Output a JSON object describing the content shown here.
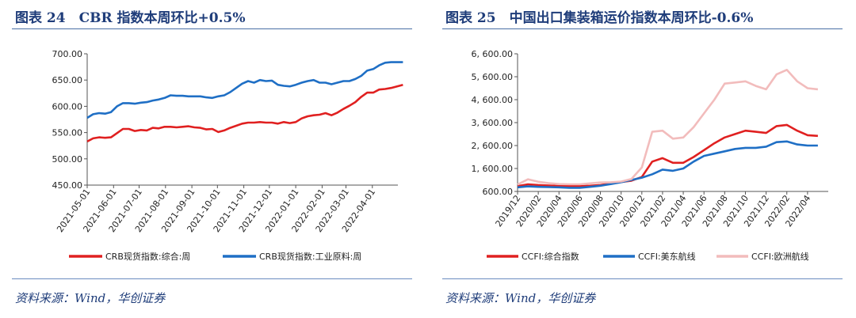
{
  "left": {
    "title": "图表 24　CBR 指数本周环比+0.5%",
    "source": "资料来源：Wind，华创证券",
    "chart_data": {
      "type": "line",
      "title": "",
      "ylim": [
        450,
        700
      ],
      "yticks": [
        "700.00",
        "650.00",
        "600.00",
        "550.00",
        "500.00",
        "450.00"
      ],
      "ytick_values": [
        700,
        650,
        600,
        550,
        500,
        450
      ],
      "x": [
        "2021-05-01",
        "2021-06-01",
        "2021-07-01",
        "2021-08-01",
        "2021-09-01",
        "2021-10-01",
        "2021-11-01",
        "2021-12-01",
        "2022-01-01",
        "2022-02-01",
        "2022-03-01",
        "2022-04-01"
      ],
      "xticks": [
        "2021-05-01",
        "2021-06-01",
        "2021-07-01",
        "2021-08-01",
        "2021-09-01",
        "2021-10-01",
        "2021-11-01",
        "2021-12-01",
        "2022-01-01",
        "2022-02-01",
        "2022-03-01",
        "2022-04-01"
      ],
      "x_end": "2022-05-01",
      "legend_position": "bottom",
      "series": [
        {
          "name": "CRB现货指数:综合:周",
          "color": "#e02020",
          "points": [
            [
              "2021-05-01",
              533
            ],
            [
              "2021-05-08",
              539
            ],
            [
              "2021-05-15",
              541
            ],
            [
              "2021-05-22",
              540
            ],
            [
              "2021-05-29",
              541
            ],
            [
              "2021-06-05",
              549
            ],
            [
              "2021-06-12",
              557
            ],
            [
              "2021-06-19",
              557
            ],
            [
              "2021-06-26",
              553
            ],
            [
              "2021-07-03",
              555
            ],
            [
              "2021-07-10",
              554
            ],
            [
              "2021-07-17",
              559
            ],
            [
              "2021-07-24",
              558
            ],
            [
              "2021-07-31",
              561
            ],
            [
              "2021-08-07",
              561
            ],
            [
              "2021-08-14",
              560
            ],
            [
              "2021-08-21",
              561
            ],
            [
              "2021-08-28",
              562
            ],
            [
              "2021-09-04",
              560
            ],
            [
              "2021-09-11",
              559
            ],
            [
              "2021-09-18",
              556
            ],
            [
              "2021-09-25",
              557
            ],
            [
              "2021-10-02",
              551
            ],
            [
              "2021-10-09",
              554
            ],
            [
              "2021-10-16",
              559
            ],
            [
              "2021-10-23",
              563
            ],
            [
              "2021-10-30",
              567
            ],
            [
              "2021-11-06",
              569
            ],
            [
              "2021-11-13",
              569
            ],
            [
              "2021-11-20",
              570
            ],
            [
              "2021-11-27",
              569
            ],
            [
              "2021-12-04",
              569
            ],
            [
              "2021-12-11",
              567
            ],
            [
              "2021-12-18",
              570
            ],
            [
              "2021-12-25",
              568
            ],
            [
              "2022-01-01",
              570
            ],
            [
              "2022-01-08",
              577
            ],
            [
              "2022-01-15",
              581
            ],
            [
              "2022-01-22",
              583
            ],
            [
              "2022-01-29",
              584
            ],
            [
              "2022-02-05",
              587
            ],
            [
              "2022-02-12",
              583
            ],
            [
              "2022-02-19",
              588
            ],
            [
              "2022-02-26",
              595
            ],
            [
              "2022-03-05",
              601
            ],
            [
              "2022-03-12",
              608
            ],
            [
              "2022-03-19",
              618
            ],
            [
              "2022-03-26",
              626
            ],
            [
              "2022-04-02",
              626
            ],
            [
              "2022-04-09",
              632
            ],
            [
              "2022-04-16",
              633
            ],
            [
              "2022-04-23",
              635
            ],
            [
              "2022-04-30",
              638
            ],
            [
              "2022-05-07",
              641
            ]
          ]
        },
        {
          "name": "CRB现货指数:工业原料:周",
          "color": "#1f6fc5",
          "points": [
            [
              "2021-05-01",
              578
            ],
            [
              "2021-05-08",
              585
            ],
            [
              "2021-05-15",
              587
            ],
            [
              "2021-05-22",
              586
            ],
            [
              "2021-05-29",
              589
            ],
            [
              "2021-06-05",
              600
            ],
            [
              "2021-06-12",
              606
            ],
            [
              "2021-06-19",
              606
            ],
            [
              "2021-06-26",
              605
            ],
            [
              "2021-07-03",
              607
            ],
            [
              "2021-07-10",
              608
            ],
            [
              "2021-07-17",
              611
            ],
            [
              "2021-07-24",
              613
            ],
            [
              "2021-07-31",
              616
            ],
            [
              "2021-08-07",
              621
            ],
            [
              "2021-08-14",
              620
            ],
            [
              "2021-08-21",
              620
            ],
            [
              "2021-08-28",
              619
            ],
            [
              "2021-09-04",
              619
            ],
            [
              "2021-09-11",
              619
            ],
            [
              "2021-09-18",
              617
            ],
            [
              "2021-09-25",
              616
            ],
            [
              "2021-10-02",
              619
            ],
            [
              "2021-10-09",
              621
            ],
            [
              "2021-10-16",
              627
            ],
            [
              "2021-10-23",
              635
            ],
            [
              "2021-10-30",
              643
            ],
            [
              "2021-11-06",
              648
            ],
            [
              "2021-11-13",
              645
            ],
            [
              "2021-11-20",
              650
            ],
            [
              "2021-11-27",
              648
            ],
            [
              "2021-12-04",
              649
            ],
            [
              "2021-12-11",
              641
            ],
            [
              "2021-12-18",
              639
            ],
            [
              "2021-12-25",
              638
            ],
            [
              "2022-01-01",
              641
            ],
            [
              "2022-01-08",
              645
            ],
            [
              "2022-01-15",
              648
            ],
            [
              "2022-01-22",
              650
            ],
            [
              "2022-01-29",
              645
            ],
            [
              "2022-02-05",
              645
            ],
            [
              "2022-02-12",
              642
            ],
            [
              "2022-02-19",
              645
            ],
            [
              "2022-02-26",
              648
            ],
            [
              "2022-03-05",
              648
            ],
            [
              "2022-03-12",
              652
            ],
            [
              "2022-03-19",
              658
            ],
            [
              "2022-03-26",
              668
            ],
            [
              "2022-04-02",
              671
            ],
            [
              "2022-04-09",
              678
            ],
            [
              "2022-04-16",
              683
            ],
            [
              "2022-04-23",
              684
            ],
            [
              "2022-04-30",
              684
            ],
            [
              "2022-05-07",
              684
            ]
          ]
        }
      ]
    }
  },
  "right": {
    "title": "图表 25　中国出口集装箱运价指数本周环比-0.6%",
    "source": "资料来源：Wind，华创证券",
    "chart_data": {
      "type": "line",
      "title": "",
      "ylim": [
        600,
        6600
      ],
      "yticks": [
        "6, 600.00",
        "5, 600.00",
        "4, 600.00",
        "3, 600.00",
        "2, 600.00",
        "1, 600.00",
        "600.00"
      ],
      "ytick_values": [
        6600,
        5600,
        4600,
        3600,
        2600,
        1600,
        600
      ],
      "x_start": "2019-12",
      "x_end": "2022-06",
      "xticks": [
        "2019/12",
        "2020/02",
        "2020/04",
        "2020/06",
        "2020/08",
        "2020/10",
        "2020/12",
        "2021/02",
        "2021/04",
        "2021/06",
        "2021/08",
        "2021/10",
        "2021/12",
        "2022/02",
        "2022/04"
      ],
      "xtick_months": [
        "2019-12",
        "2020-02",
        "2020-04",
        "2020-06",
        "2020-08",
        "2020-10",
        "2020-12",
        "2021-02",
        "2021-04",
        "2021-06",
        "2021-08",
        "2021-10",
        "2021-12",
        "2022-02",
        "2022-04"
      ],
      "legend_position": "bottom",
      "series": [
        {
          "name": "CCFI:综合指数",
          "color": "#e02020",
          "points": [
            [
              "2019-12",
              830
            ],
            [
              "2020-01",
              910
            ],
            [
              "2020-02",
              880
            ],
            [
              "2020-03",
              860
            ],
            [
              "2020-04",
              840
            ],
            [
              "2020-05",
              830
            ],
            [
              "2020-06",
              830
            ],
            [
              "2020-07",
              850
            ],
            [
              "2020-08",
              880
            ],
            [
              "2020-09",
              950
            ],
            [
              "2020-10",
              1010
            ],
            [
              "2020-11",
              1070
            ],
            [
              "2020-12",
              1230
            ],
            [
              "2021-01",
              1900
            ],
            [
              "2021-02",
              2050
            ],
            [
              "2021-03",
              1850
            ],
            [
              "2021-04",
              1850
            ],
            [
              "2021-05",
              2100
            ],
            [
              "2021-06",
              2400
            ],
            [
              "2021-07",
              2700
            ],
            [
              "2021-08",
              2950
            ],
            [
              "2021-09",
              3100
            ],
            [
              "2021-10",
              3250
            ],
            [
              "2021-11",
              3200
            ],
            [
              "2021-12",
              3150
            ],
            [
              "2022-01",
              3450
            ],
            [
              "2022-02",
              3500
            ],
            [
              "2022-03",
              3250
            ],
            [
              "2022-04",
              3050
            ],
            [
              "2022-05",
              3020
            ]
          ]
        },
        {
          "name": "CCFI:美东航线",
          "color": "#1f6fc5",
          "points": [
            [
              "2019-12",
              780
            ],
            [
              "2020-01",
              820
            ],
            [
              "2020-02",
              800
            ],
            [
              "2020-03",
              790
            ],
            [
              "2020-04",
              780
            ],
            [
              "2020-05",
              760
            ],
            [
              "2020-06",
              760
            ],
            [
              "2020-07",
              800
            ],
            [
              "2020-08",
              850
            ],
            [
              "2020-09",
              920
            ],
            [
              "2020-10",
              1000
            ],
            [
              "2020-11",
              1100
            ],
            [
              "2020-12",
              1200
            ],
            [
              "2021-01",
              1350
            ],
            [
              "2021-02",
              1550
            ],
            [
              "2021-03",
              1500
            ],
            [
              "2021-04",
              1600
            ],
            [
              "2021-05",
              1900
            ],
            [
              "2021-06",
              2150
            ],
            [
              "2021-07",
              2250
            ],
            [
              "2021-08",
              2350
            ],
            [
              "2021-09",
              2450
            ],
            [
              "2021-10",
              2500
            ],
            [
              "2021-11",
              2500
            ],
            [
              "2021-12",
              2550
            ],
            [
              "2022-01",
              2750
            ],
            [
              "2022-02",
              2780
            ],
            [
              "2022-03",
              2650
            ],
            [
              "2022-04",
              2600
            ],
            [
              "2022-05",
              2600
            ]
          ]
        },
        {
          "name": "CCFI:欧洲航线",
          "color": "#f2bcbc",
          "points": [
            [
              "2019-12",
              900
            ],
            [
              "2020-01",
              1130
            ],
            [
              "2020-02",
              1020
            ],
            [
              "2020-03",
              960
            ],
            [
              "2020-04",
              920
            ],
            [
              "2020-05",
              910
            ],
            [
              "2020-06",
              910
            ],
            [
              "2020-07",
              950
            ],
            [
              "2020-08",
              990
            ],
            [
              "2020-09",
              1000
            ],
            [
              "2020-10",
              1030
            ],
            [
              "2020-11",
              1140
            ],
            [
              "2020-12",
              1650
            ],
            [
              "2021-01",
              3200
            ],
            [
              "2021-02",
              3250
            ],
            [
              "2021-03",
              2900
            ],
            [
              "2021-04",
              2950
            ],
            [
              "2021-05",
              3400
            ],
            [
              "2021-06",
              4000
            ],
            [
              "2021-07",
              4600
            ],
            [
              "2021-08",
              5300
            ],
            [
              "2021-09",
              5350
            ],
            [
              "2021-10",
              5400
            ],
            [
              "2021-11",
              5200
            ],
            [
              "2021-12",
              5050
            ],
            [
              "2022-01",
              5700
            ],
            [
              "2022-02",
              5900
            ],
            [
              "2022-03",
              5400
            ],
            [
              "2022-04",
              5100
            ],
            [
              "2022-05",
              5050
            ]
          ]
        }
      ]
    }
  }
}
